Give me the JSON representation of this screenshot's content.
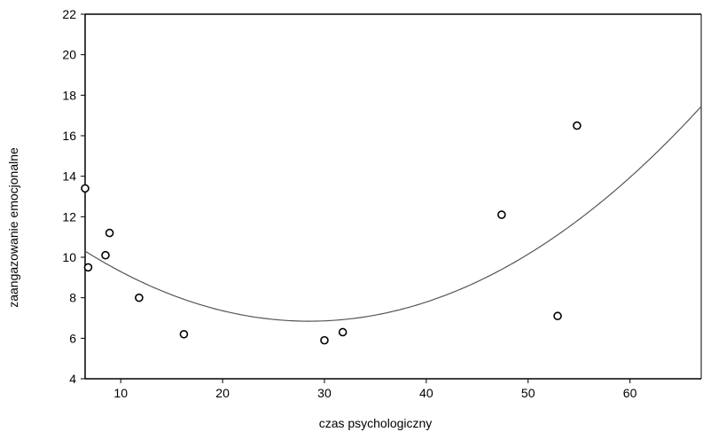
{
  "chart_data": {
    "type": "scatter",
    "title": "",
    "xlabel": "czas psychologiczny",
    "ylabel": "zaangazowanie emocjonalne",
    "xlim": [
      6.5,
      67
    ],
    "ylim": [
      4,
      22
    ],
    "xticks": [
      10,
      20,
      30,
      40,
      50,
      60
    ],
    "yticks": [
      4,
      6,
      8,
      10,
      12,
      14,
      16,
      18,
      20,
      22
    ],
    "grid": false,
    "legend": "none",
    "series": [
      {
        "points": [
          {
            "x": 6.5,
            "y": 13.4
          },
          {
            "x": 6.8,
            "y": 9.5
          },
          {
            "x": 8.5,
            "y": 10.1
          },
          {
            "x": 8.9,
            "y": 11.2
          },
          {
            "x": 11.8,
            "y": 8.0
          },
          {
            "x": 16.2,
            "y": 6.2
          },
          {
            "x": 30.0,
            "y": 5.9
          },
          {
            "x": 31.8,
            "y": 6.3
          },
          {
            "x": 47.4,
            "y": 12.1
          },
          {
            "x": 52.9,
            "y": 7.1
          },
          {
            "x": 54.8,
            "y": 16.5
          }
        ]
      }
    ],
    "fit_curve": {
      "type": "quadratic",
      "coefficients": [
        12.65,
        -0.4076,
        0.007152
      ]
    },
    "colors": {
      "marker_edge": "#000000",
      "curve": "#555555",
      "axis": "#000000"
    }
  }
}
